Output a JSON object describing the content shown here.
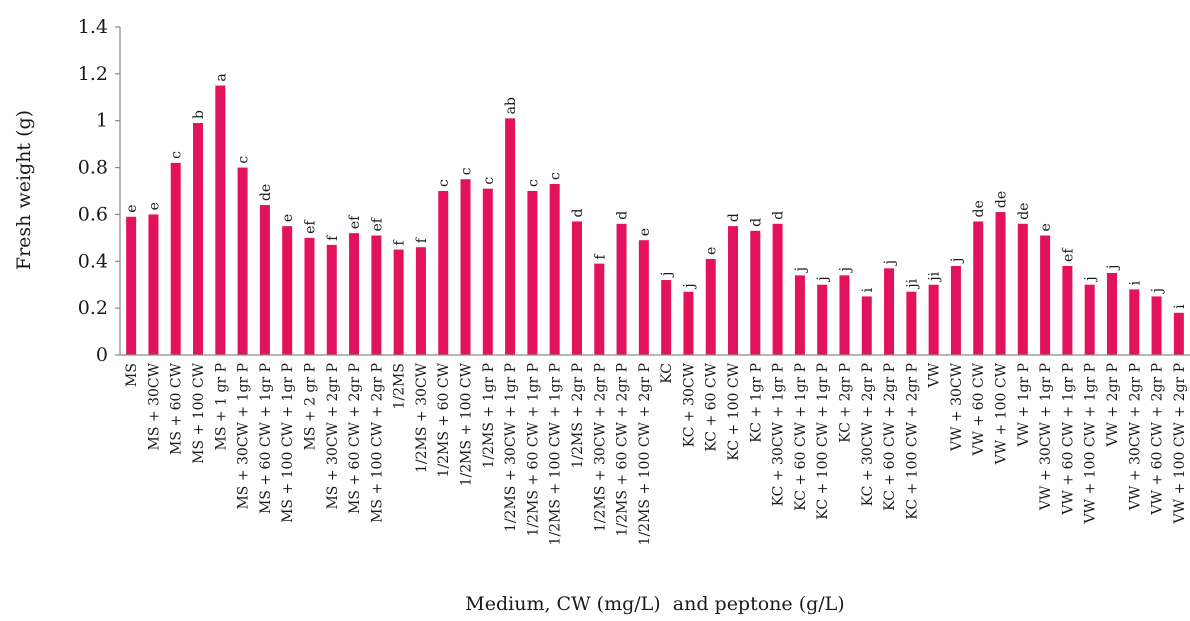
{
  "chart_data": {
    "type": "bar",
    "xlabel": "Medium, CW (mg/L)  and peptone (g/L)",
    "ylabel": "Fresh weight (g)",
    "ylim": [
      0,
      1.4
    ],
    "yticks": [
      "0",
      "0.2",
      "0.4",
      "0.6",
      "0.8",
      "1",
      "1.2",
      "1.4"
    ],
    "grid": false,
    "bar_color": "#e2125c",
    "categories": [
      "MS",
      "MS + 30CW",
      "MS + 60 CW",
      "MS + 100 CW",
      "MS + 1 gr P",
      "MS + 30CW + 1gr P",
      "MS + 60 CW + 1gr P",
      "MS + 100 CW + 1gr P",
      "MS + 2 gr P",
      "MS + 30CW + 2gr P",
      "MS + 60 CW + 2gr P",
      "MS + 100 CW + 2gr P",
      "1/2MS",
      "1/2MS + 30CW",
      "1/2MS + 60 CW",
      "1/2MS + 100 CW",
      "1/2MS + 1gr P",
      "1/2MS + 30CW + 1gr P",
      "1/2MS + 60 CW + 1gr P",
      "1/2MS + 100 CW + 1gr P",
      "1/2MS + 2gr P",
      "1/2MS + 30CW + 2gr P",
      "1/2MS + 60 CW + 2gr P",
      "1/2MS + 100 CW + 2gr P",
      "KC",
      "KC + 30CW",
      "KC + 60 CW",
      "KC + 100 CW",
      "KC + 1gr P",
      "KC + 30CW + 1gr P",
      "KC + 60 CW + 1gr P",
      "KC + 100 CW + 1gr P",
      "KC + 2gr P",
      "KC + 30CW + 2gr P",
      "KC + 60 CW + 2gr P",
      "KC + 100 CW + 2gr P",
      "VW",
      "VW + 30CW",
      "VW + 60 CW",
      "VW + 100 CW",
      "VW + 1gr P",
      "VW + 30CW + 1gr P",
      "VW + 60 CW + 1gr P",
      "VW + 100 CW + 1gr P",
      "VW + 2gr P",
      "VW + 30CW + 2gr P",
      "VW + 60 CW + 2gr P",
      "VW + 100 CW + 2gr P"
    ],
    "values": [
      0.59,
      0.6,
      0.82,
      0.99,
      1.15,
      0.8,
      0.64,
      0.55,
      0.5,
      0.47,
      0.52,
      0.51,
      0.45,
      0.46,
      0.7,
      0.75,
      0.71,
      1.01,
      0.7,
      0.73,
      0.57,
      0.39,
      0.56,
      0.49,
      0.32,
      0.27,
      0.41,
      0.55,
      0.53,
      0.56,
      0.34,
      0.3,
      0.34,
      0.25,
      0.37,
      0.27,
      0.3,
      0.38,
      0.57,
      0.61,
      0.56,
      0.51,
      0.38,
      0.3,
      0.35,
      0.28,
      0.25,
      0.18
    ],
    "data_labels": [
      "e",
      "e",
      "c",
      "b",
      "a",
      "c",
      "de",
      "e",
      "ef",
      "f",
      "ef",
      "ef",
      "f",
      "f",
      "c",
      "c",
      "c",
      "ab",
      "c",
      "c",
      "d",
      "f",
      "d",
      "e",
      "j",
      "j",
      "e",
      "d",
      "d",
      "d",
      "j",
      "j",
      "j",
      "i",
      "j",
      "ji",
      "ji",
      "j",
      "de",
      "de",
      "de",
      "e",
      "ef",
      "j",
      "j",
      "i",
      "j",
      "i"
    ]
  }
}
